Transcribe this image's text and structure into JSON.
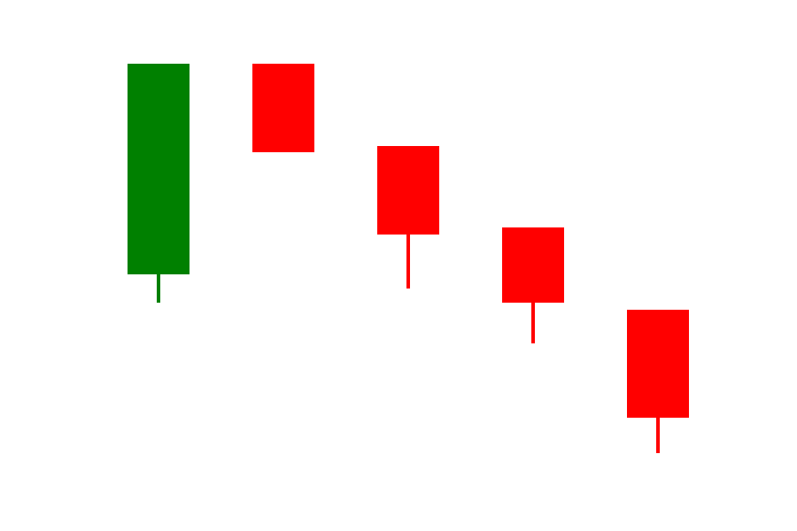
{
  "chart_data": {
    "type": "candlestick",
    "colors": {
      "up": "#008000",
      "down": "#ff0000",
      "background": "#ffffff"
    },
    "axes_visible": false,
    "grid": false,
    "legend": "none",
    "ylim": [
      0,
      600
    ],
    "candles": [
      {
        "index": 1,
        "open": 290,
        "close": 528,
        "high": 528,
        "low": 258,
        "direction": "up"
      },
      {
        "index": 2,
        "open": 528,
        "close": 428,
        "high": 528,
        "low": 428,
        "direction": "down"
      },
      {
        "index": 3,
        "open": 435,
        "close": 335,
        "high": 435,
        "low": 274,
        "direction": "down"
      },
      {
        "index": 4,
        "open": 343,
        "close": 258,
        "high": 343,
        "low": 212,
        "direction": "down"
      },
      {
        "index": 5,
        "open": 250,
        "close": 128,
        "high": 250,
        "low": 88,
        "direction": "down"
      }
    ]
  }
}
